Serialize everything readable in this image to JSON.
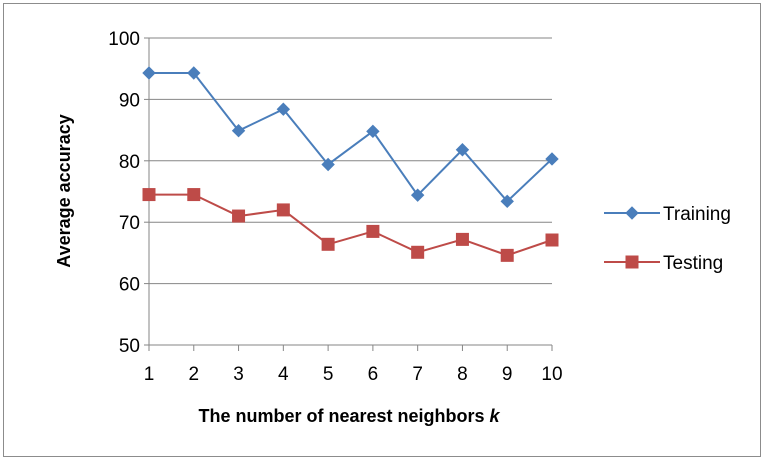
{
  "chart_data": {
    "type": "line",
    "x": [
      1,
      2,
      3,
      4,
      5,
      6,
      7,
      8,
      9,
      10
    ],
    "series": [
      {
        "name": "Training",
        "values": [
          94.3,
          94.3,
          84.9,
          88.4,
          79.4,
          84.8,
          74.4,
          81.8,
          73.4,
          80.3
        ],
        "color": "#4a7ebb",
        "marker": "diamond"
      },
      {
        "name": "Testing",
        "values": [
          74.5,
          74.5,
          71.0,
          72.0,
          66.4,
          68.5,
          65.1,
          67.2,
          64.6,
          67.1
        ],
        "color": "#be4b48",
        "marker": "square"
      }
    ],
    "xlabel_prefix": "The number of nearest neighbors ",
    "xlabel_var": "k",
    "ylabel": "Average accuracy",
    "ylim": [
      50,
      100
    ],
    "yticks": [
      50,
      60,
      70,
      80,
      90,
      100
    ],
    "xticks": [
      1,
      2,
      3,
      4,
      5,
      6,
      7,
      8,
      9,
      10
    ],
    "grid": "horizontal",
    "legend_position": "right"
  }
}
